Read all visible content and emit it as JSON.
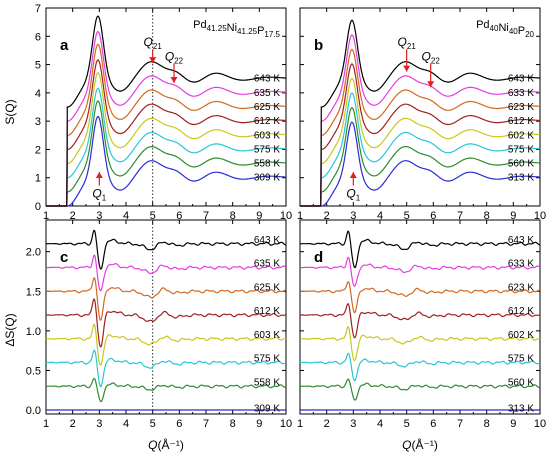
{
  "colors": [
    "#2b2bd6",
    "#2e8b2e",
    "#2ac6d6",
    "#c8c81e",
    "#a02020",
    "#d2691e",
    "#e63ce6",
    "#000000"
  ],
  "axis_labels": {
    "x_prefix": "Q",
    "x_unit": "(Å⁻¹)",
    "y_top": "S(Q)",
    "y_bottom": "ΔS(Q)"
  },
  "chart_data": [
    {
      "panel": "a",
      "type": "line",
      "composition": {
        "parts": [
          [
            "Pd",
            "41.25"
          ],
          [
            "Ni",
            "41.25"
          ],
          [
            "P",
            "17.5"
          ]
        ]
      },
      "xlim": [
        1,
        10
      ],
      "ylim": [
        0,
        7
      ],
      "xticks": [
        1,
        2,
        3,
        4,
        5,
        6,
        7,
        8,
        9,
        10
      ],
      "yticks": [
        0,
        1,
        2,
        3,
        4,
        5,
        6,
        7
      ],
      "offset_step": 0.5,
      "temperatures": [
        "309 K",
        "558 K",
        "575 K",
        "603 K",
        "612 K",
        "625 K",
        "635 K",
        "643 K"
      ],
      "label_y": [
        1.0,
        1.5,
        2.0,
        2.5,
        3.0,
        3.5,
        4.0,
        4.5
      ],
      "peak_labels": [
        {
          "main": "Q",
          "sub": "1",
          "x": 3.0,
          "y": 0.3,
          "arrow_y": 1.2,
          "arrow_dir": "up"
        },
        {
          "main": "Q",
          "sub": "21",
          "x": 5.0,
          "y": 5.65,
          "arrow_y": 5.05,
          "arrow_dir": "down"
        },
        {
          "main": "Q",
          "sub": "22",
          "x": 5.8,
          "y": 5.15,
          "arrow_y": 4.35,
          "arrow_dir": "down"
        }
      ],
      "reference_line_x": 5.0
    },
    {
      "panel": "b",
      "type": "line",
      "composition": {
        "parts": [
          [
            "Pd",
            "40"
          ],
          [
            "Ni",
            "40"
          ],
          [
            "P",
            "20"
          ]
        ]
      },
      "xlim": [
        1,
        10
      ],
      "ylim": [
        0,
        7
      ],
      "xticks": [
        1,
        2,
        3,
        4,
        5,
        6,
        7,
        8,
        9,
        10
      ],
      "yticks": [
        0,
        1,
        2,
        3,
        4,
        5,
        6,
        7
      ],
      "offset_step": 0.5,
      "temperatures": [
        "313 K",
        "560 K",
        "575 K",
        "602 K",
        "612 K",
        "623 K",
        "633 K",
        "643 K"
      ],
      "label_y": [
        1.0,
        1.5,
        2.0,
        2.5,
        3.0,
        3.5,
        4.0,
        4.5
      ],
      "peak_labels": [
        {
          "main": "Q",
          "sub": "1",
          "x": 3.0,
          "y": 0.3,
          "arrow_y": 1.2,
          "arrow_dir": "up"
        },
        {
          "main": "Q",
          "sub": "21",
          "x": 5.0,
          "y": 5.65,
          "arrow_y": 4.75,
          "arrow_dir": "down"
        },
        {
          "main": "Q",
          "sub": "22",
          "x": 5.9,
          "y": 5.15,
          "arrow_y": 4.2,
          "arrow_dir": "down"
        }
      ]
    },
    {
      "panel": "c",
      "type": "line",
      "xlim": [
        1,
        10
      ],
      "ylim": [
        -0.05,
        2.4
      ],
      "xticks": [
        1,
        2,
        3,
        4,
        5,
        6,
        7,
        8,
        9,
        10
      ],
      "yticks": [
        0.0,
        0.5,
        1.0,
        1.5,
        2.0
      ],
      "offset_step": 0.3,
      "temperatures": [
        "309 K",
        "558 K",
        "575 K",
        "603 K",
        "612 K",
        "625 K",
        "635 K",
        "643 K"
      ],
      "label_y": [
        0.02,
        0.35,
        0.65,
        0.95,
        1.25,
        1.55,
        1.85,
        2.15
      ],
      "dip_depth": [
        0,
        0.2,
        0.3,
        0.34,
        0.42,
        0.38,
        0.32,
        0.34
      ],
      "reference_line_x": 5.0
    },
    {
      "panel": "d",
      "type": "line",
      "xlim": [
        1,
        10
      ],
      "ylim": [
        -0.05,
        2.4
      ],
      "xticks": [
        1,
        2,
        3,
        4,
        5,
        6,
        7,
        8,
        9,
        10
      ],
      "yticks": [
        0.0,
        0.5,
        1.0,
        1.5,
        2.0
      ],
      "offset_step": 0.3,
      "temperatures": [
        "313 K",
        "560 K",
        "575 K",
        "602 K",
        "612 K",
        "623 K",
        "633 K",
        "643 K"
      ],
      "label_y": [
        0.02,
        0.35,
        0.65,
        0.95,
        1.25,
        1.55,
        1.85,
        2.15
      ],
      "dip_depth": [
        0,
        0.18,
        0.22,
        0.28,
        0.3,
        0.28,
        0.26,
        0.32
      ]
    }
  ]
}
